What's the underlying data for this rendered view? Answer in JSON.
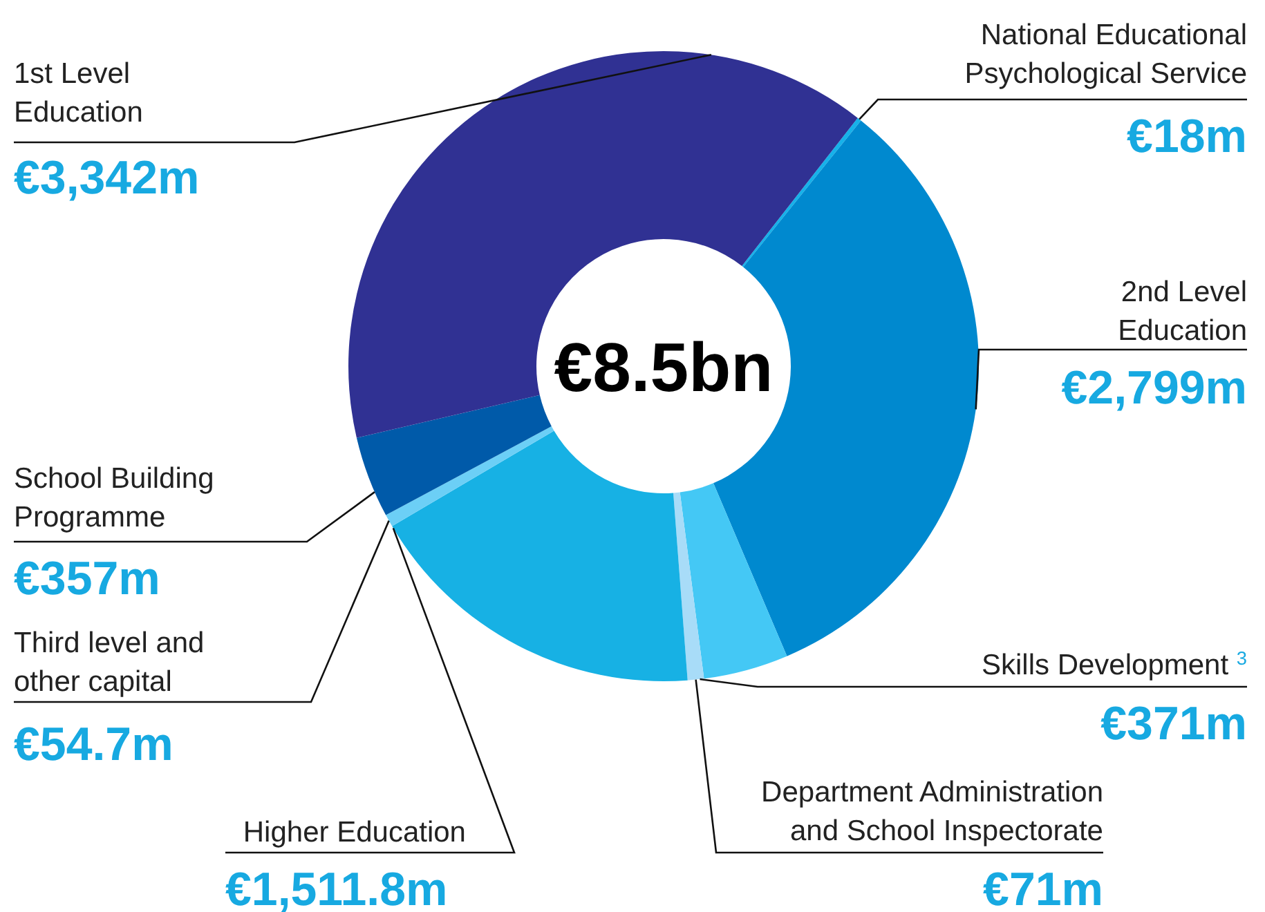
{
  "chart_data": {
    "type": "donut",
    "categories": [
      "National Educational\nPsychological Service",
      "2nd Level\nEducation",
      "Skills Development $^{3}$",
      "Department Administration\nand School Inspectorate",
      "Higher Education",
      "Third level and\nother capital",
      "School Building\nProgramme",
      "1st Level\nEducation"
    ],
    "values": [
      18,
      2799,
      371,
      71,
      1511.8,
      54.7,
      357,
      3342
    ],
    "value_labels": [
      "€18m",
      "€2,799m",
      "€371m",
      "€71m",
      "€1,511.8m",
      "€54.7m",
      "€357m",
      "€3,342m"
    ],
    "colors": [
      "#16b2ea",
      "#0089cf",
      "#44c8f5",
      "#a8dcf8",
      "#17b1e4",
      "#6ccff6",
      "#005aa9",
      "#303193"
    ],
    "annotations": [
      "€8.5bn"
    ]
  }
}
